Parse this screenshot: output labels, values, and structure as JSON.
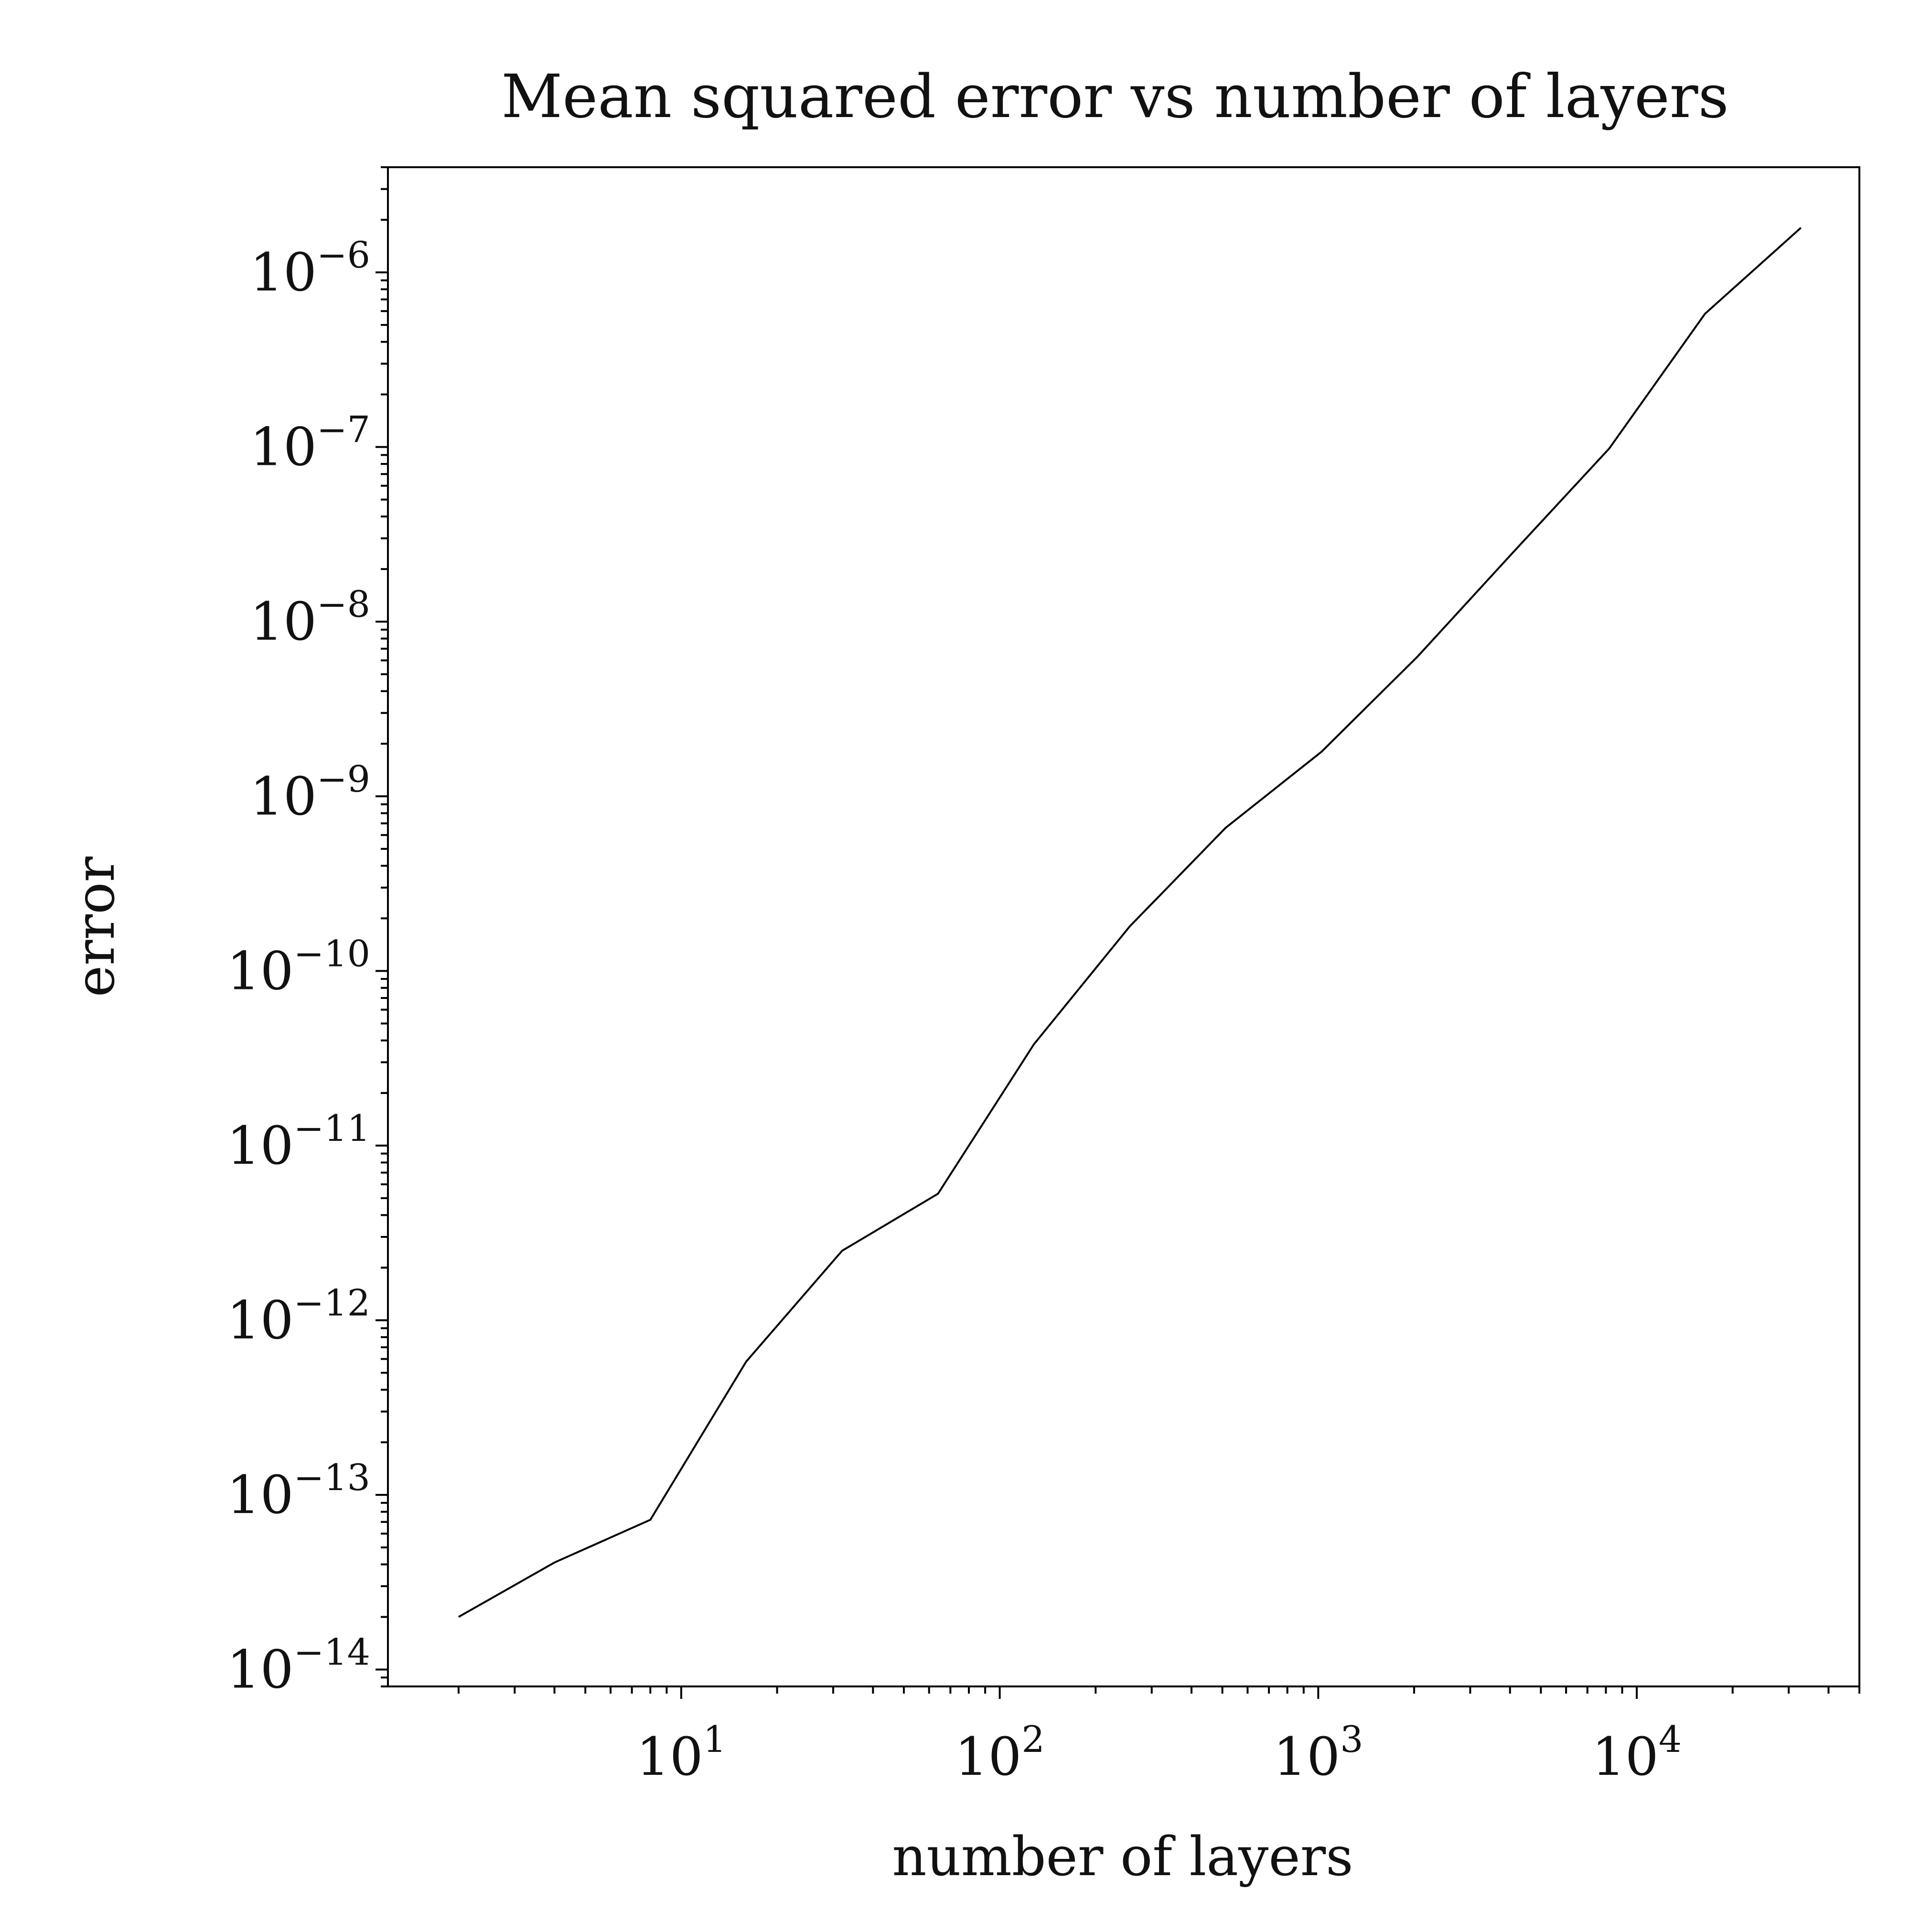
{
  "chart_data": {
    "type": "line",
    "title": "Mean squared error vs number of layers",
    "xlabel": "number of layers",
    "ylabel": "error",
    "xscale": "log",
    "yscale": "log",
    "xlim": [
      1.2,
      50000
    ],
    "ylim": [
      8e-15,
      4e-06
    ],
    "xticks": [
      {
        "value": 10,
        "base": "10",
        "exp": "1"
      },
      {
        "value": 100,
        "base": "10",
        "exp": "2"
      },
      {
        "value": 1000,
        "base": "10",
        "exp": "3"
      },
      {
        "value": 10000,
        "base": "10",
        "exp": "4"
      }
    ],
    "yticks": [
      {
        "value": 1e-14,
        "base": "10",
        "exp": "−14"
      },
      {
        "value": 1e-13,
        "base": "10",
        "exp": "−13"
      },
      {
        "value": 1e-12,
        "base": "10",
        "exp": "−12"
      },
      {
        "value": 1e-11,
        "base": "10",
        "exp": "−11"
      },
      {
        "value": 1e-10,
        "base": "10",
        "exp": "−10"
      },
      {
        "value": 1e-09,
        "base": "10",
        "exp": "−9"
      },
      {
        "value": 1e-08,
        "base": "10",
        "exp": "−8"
      },
      {
        "value": 1e-07,
        "base": "10",
        "exp": "−7"
      },
      {
        "value": 1e-06,
        "base": "10",
        "exp": "−6"
      }
    ],
    "grid": false,
    "series": [
      {
        "color": "#000000",
        "x": [
          2,
          4,
          8,
          16,
          32,
          64,
          128,
          256,
          512,
          1024,
          2048,
          4096,
          8192,
          16384,
          32768
        ],
        "y": [
          2e-14,
          4.1e-14,
          7.2e-14,
          5.8e-13,
          2.5e-12,
          5.3e-12,
          3.8e-11,
          1.8e-10,
          6.6e-10,
          1.8e-09,
          6.3e-09,
          2.5e-08,
          9.8e-08,
          5.8e-07,
          1.8e-06
        ]
      }
    ]
  }
}
